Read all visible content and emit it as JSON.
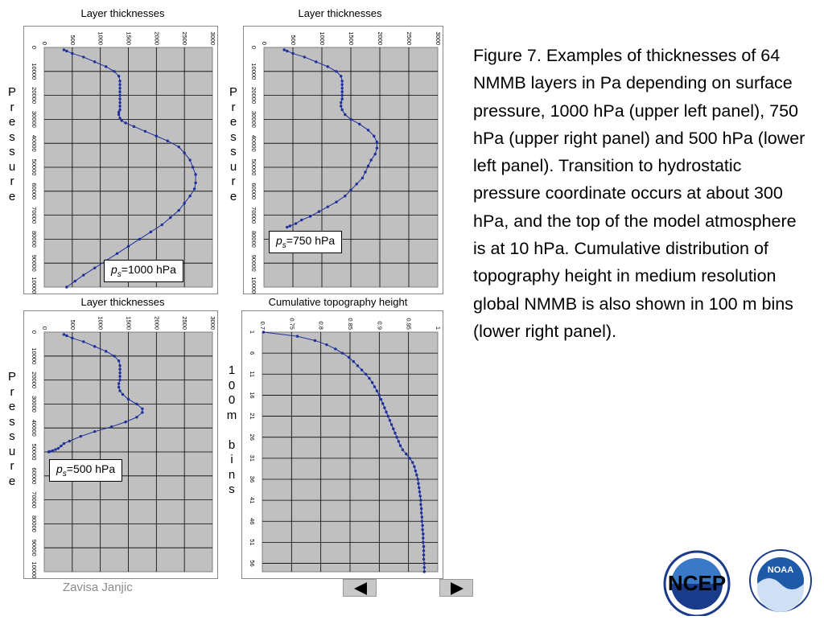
{
  "caption": {
    "text": "Figure 7.  Examples of thicknesses of 64 NMMB layers in Pa depending on surface pressure, 1000 hPa (upper left panel), 750 hPa (upper right panel) and 500 hPa (lower left panel).  Transition to hydrostatic pressure coordinate occurs at about 300 hPa, and the top of the model atmosphere is at 10 hPa.  Cumulative distribution of topography height in medium resolution global NMMB is also shown in 100 m bins (lower right panel)."
  },
  "footer": {
    "author": "Zavisa Janjic"
  },
  "nav": {
    "prev": "previous-slide",
    "next": "next-slide"
  },
  "logos": {
    "ncep_text": "NCEP",
    "noaa_text": "NOAA"
  },
  "pressure_label": [
    "P",
    "r",
    "e",
    "s",
    "s",
    "u",
    "r",
    "e"
  ],
  "bins_label": [
    "1",
    "0",
    "0",
    "m",
    "",
    "b",
    "i",
    "n",
    "s"
  ],
  "colors": {
    "series": "#1f2f9a",
    "grid": "#000000",
    "plot_bg": "#c0c0c0"
  },
  "chart_data": [
    {
      "type": "line",
      "title": "Layer thicknesses",
      "ps_label_symbol": "p",
      "ps_label_sub": "s",
      "ps_label_value": "=1000 hPa",
      "xlim": [
        0,
        3000
      ],
      "xticks": [
        "0",
        "500",
        "1000",
        "1500",
        "2000",
        "2500",
        "3000"
      ],
      "ylim": [
        0,
        100000
      ],
      "yticks": [
        "0",
        "10000",
        "20000",
        "30000",
        "40000",
        "50000",
        "60000",
        "70000",
        "80000",
        "90000",
        "100000"
      ],
      "ylabel": "Pressure",
      "series": [
        {
          "name": "thickness",
          "x": [
            350,
            400,
            500,
            700,
            900,
            1100,
            1250,
            1330,
            1350,
            1350,
            1350,
            1350,
            1350,
            1350,
            1350,
            1350,
            1350,
            1330,
            1330,
            1350,
            1380,
            1450,
            1600,
            1800,
            2000,
            2200,
            2400,
            2500,
            2600,
            2650,
            2700,
            2700,
            2680,
            2600,
            2500,
            2400,
            2250,
            2100,
            1900,
            1700,
            1500,
            1300,
            1100,
            900,
            700,
            550,
            400
          ],
          "y": [
            1000,
            1500,
            2500,
            4000,
            6000,
            8000,
            10000,
            12000,
            14000,
            15500,
            17000,
            18500,
            20000,
            21500,
            23000,
            24500,
            26000,
            27000,
            28000,
            29500,
            30500,
            31500,
            33000,
            35000,
            37000,
            39000,
            41500,
            44000,
            47000,
            50000,
            53000,
            56500,
            59000,
            62000,
            65000,
            68000,
            71000,
            74000,
            77000,
            80000,
            83000,
            86000,
            89000,
            92000,
            95000,
            97500,
            100000
          ]
        }
      ]
    },
    {
      "type": "line",
      "title": "Layer thicknesses",
      "ps_label_symbol": "p",
      "ps_label_sub": "s",
      "ps_label_value": "=750 hPa",
      "xlim": [
        0,
        3000
      ],
      "xticks": [
        "0",
        "500",
        "1000",
        "1500",
        "2000",
        "2500",
        "3000"
      ],
      "ylim": [
        0,
        100000
      ],
      "yticks": [
        "0",
        "10000",
        "20000",
        "30000",
        "40000",
        "50000",
        "60000",
        "70000",
        "80000",
        "90000",
        "100000"
      ],
      "ylabel": "Pressure",
      "series": [
        {
          "name": "thickness",
          "x": [
            350,
            400,
            500,
            700,
            900,
            1100,
            1250,
            1330,
            1350,
            1350,
            1350,
            1350,
            1350,
            1350,
            1330,
            1330,
            1350,
            1400,
            1500,
            1650,
            1800,
            1900,
            1950,
            1950,
            1920,
            1850,
            1800,
            1750,
            1700,
            1600,
            1500,
            1400,
            1250,
            1100,
            950,
            800,
            650,
            550,
            450,
            400
          ],
          "y": [
            1000,
            1500,
            2500,
            4000,
            6000,
            8000,
            10000,
            12000,
            14000,
            15500,
            17000,
            18500,
            20000,
            21500,
            23000,
            24500,
            26000,
            28000,
            30000,
            32000,
            34500,
            37000,
            39500,
            42000,
            44500,
            47000,
            49500,
            52000,
            54500,
            57000,
            59500,
            62000,
            64500,
            66500,
            68500,
            70500,
            72000,
            73500,
            74500,
            75000
          ]
        }
      ]
    },
    {
      "type": "line",
      "title": "Layer thicknesses",
      "ps_label_symbol": "p",
      "ps_label_sub": "s",
      "ps_label_value": "=500 hPa",
      "xlim": [
        0,
        3000
      ],
      "xticks": [
        "0",
        "500",
        "1000",
        "1500",
        "2000",
        "2500",
        "3000"
      ],
      "ylim": [
        0,
        100000
      ],
      "yticks": [
        "0",
        "10000",
        "20000",
        "30000",
        "40000",
        "50000",
        "60000",
        "70000",
        "80000",
        "90000",
        "100000"
      ],
      "ylabel": "Pressure",
      "series": [
        {
          "name": "thickness",
          "x": [
            350,
            400,
            500,
            700,
            900,
            1100,
            1250,
            1330,
            1350,
            1350,
            1350,
            1350,
            1350,
            1330,
            1330,
            1350,
            1400,
            1500,
            1650,
            1750,
            1750,
            1650,
            1450,
            1200,
            900,
            650,
            450,
            350,
            300,
            250,
            200,
            150,
            100,
            80
          ],
          "y": [
            1000,
            1500,
            2500,
            4000,
            6000,
            8000,
            10000,
            12000,
            14000,
            15500,
            17000,
            18500,
            20000,
            21500,
            23000,
            24500,
            26000,
            28000,
            30000,
            32000,
            33500,
            35500,
            37500,
            39500,
            41500,
            43500,
            45500,
            46500,
            47500,
            48500,
            49000,
            49500,
            49800,
            50000
          ]
        }
      ]
    },
    {
      "type": "line",
      "title": "Cumulative topography height",
      "xlim": [
        0.7,
        1.0
      ],
      "xticks": [
        "0.7",
        "0.75",
        "0.8",
        "0.85",
        "0.9",
        "0.95",
        "1"
      ],
      "ylim": [
        1,
        58
      ],
      "yticks": [
        "1",
        "6",
        "11",
        "16",
        "21",
        "26",
        "31",
        "36",
        "41",
        "46",
        "51",
        "56"
      ],
      "ylabel": "100m bins",
      "series": [
        {
          "name": "cumulative fraction",
          "x": [
            0.702,
            0.76,
            0.79,
            0.81,
            0.825,
            0.837,
            0.848,
            0.856,
            0.863,
            0.87,
            0.877,
            0.883,
            0.888,
            0.892,
            0.896,
            0.9,
            0.903,
            0.906,
            0.909,
            0.912,
            0.915,
            0.918,
            0.921,
            0.924,
            0.927,
            0.93,
            0.933,
            0.936,
            0.94,
            0.946,
            0.952,
            0.957,
            0.96,
            0.962,
            0.964,
            0.966,
            0.967,
            0.968,
            0.969,
            0.97,
            0.971,
            0.971,
            0.972,
            0.972,
            0.973,
            0.973,
            0.974,
            0.974,
            0.975,
            0.975,
            0.975,
            0.976,
            0.976,
            0.976,
            0.976,
            0.977,
            0.977,
            0.977
          ],
          "y": [
            1,
            2,
            3,
            4,
            5,
            6,
            7,
            8,
            9,
            10,
            11,
            12,
            13,
            14,
            15,
            16,
            17,
            18,
            19,
            20,
            21,
            22,
            23,
            24,
            25,
            26,
            27,
            28,
            29,
            30,
            31,
            32,
            33,
            34,
            35,
            36,
            37,
            38,
            39,
            40,
            41,
            42,
            43,
            44,
            45,
            46,
            47,
            48,
            49,
            50,
            51,
            52,
            53,
            54,
            55,
            56,
            57,
            58
          ]
        }
      ]
    }
  ]
}
